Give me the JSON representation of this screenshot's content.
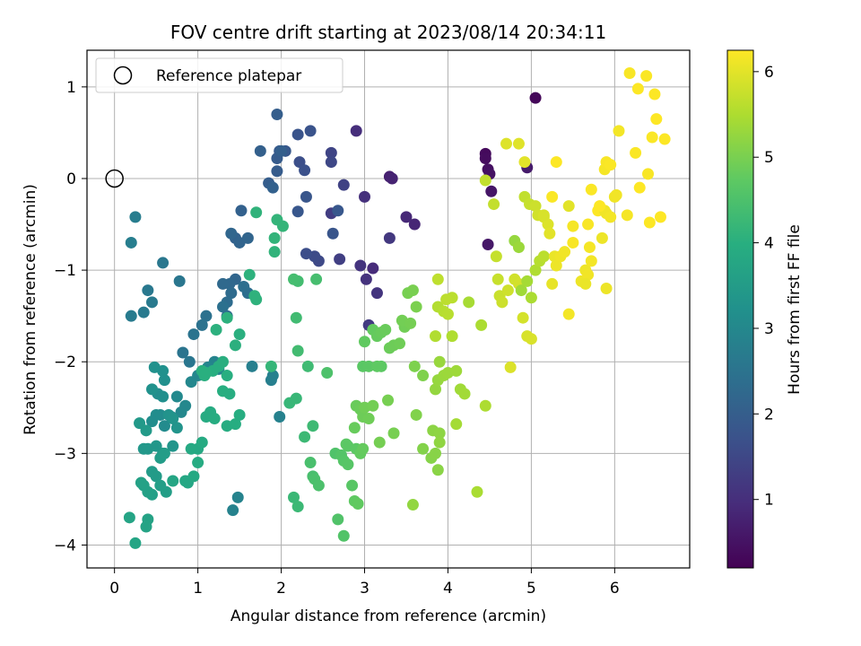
{
  "chart_data": {
    "type": "scatter",
    "title": "FOV centre drift starting at 2023/08/14 20:34:11",
    "xlabel": "Angular distance from reference (arcmin)",
    "ylabel": "Rotation from reference (arcmin)",
    "xlim": [
      -0.33,
      6.9
    ],
    "ylim": [
      -4.25,
      1.4
    ],
    "xticks": [
      0,
      1,
      2,
      3,
      4,
      5,
      6
    ],
    "yticks": [
      -4,
      -3,
      -2,
      -1,
      0,
      1
    ],
    "grid": true,
    "legend": {
      "placement": "top-left",
      "entries": [
        {
          "label": "Reference platepar",
          "marker": "open-circle"
        }
      ]
    },
    "reference_point": {
      "x": 0,
      "y": 0
    },
    "colorbar": {
      "label": "Hours from first FF file",
      "colormap": "viridis",
      "range": [
        0.2,
        6.25
      ],
      "ticks": [
        1,
        2,
        3,
        4,
        5,
        6
      ]
    },
    "points": [
      [
        5.05,
        0.88,
        0.3
      ],
      [
        4.45,
        0.27,
        0.35
      ],
      [
        4.45,
        0.22,
        0.4
      ],
      [
        4.48,
        0.1,
        0.45
      ],
      [
        4.5,
        0.05,
        0.5
      ],
      [
        4.52,
        -0.14,
        0.55
      ],
      [
        4.48,
        -0.72,
        0.6
      ],
      [
        4.95,
        0.12,
        0.65
      ],
      [
        3.3,
        0.02,
        0.75
      ],
      [
        3.33,
        0.0,
        0.8
      ],
      [
        3.6,
        -0.5,
        0.85
      ],
      [
        3.5,
        -0.42,
        0.9
      ],
      [
        3.1,
        -0.98,
        0.95
      ],
      [
        2.9,
        0.52,
        1.0
      ],
      [
        3.0,
        -0.2,
        1.05
      ],
      [
        3.02,
        -1.1,
        1.1
      ],
      [
        2.95,
        -0.95,
        1.12
      ],
      [
        3.15,
        -1.25,
        1.15
      ],
      [
        3.3,
        -0.65,
        1.2
      ],
      [
        3.05,
        -1.6,
        1.25
      ],
      [
        2.6,
        -0.38,
        1.3
      ],
      [
        2.7,
        -0.88,
        1.35
      ],
      [
        2.75,
        -0.07,
        1.4
      ],
      [
        2.6,
        0.28,
        1.45
      ],
      [
        2.6,
        0.18,
        1.5
      ],
      [
        2.45,
        -0.9,
        1.55
      ],
      [
        2.4,
        -0.85,
        1.6
      ],
      [
        2.3,
        -0.82,
        1.65
      ],
      [
        2.22,
        0.18,
        1.68
      ],
      [
        2.28,
        0.09,
        1.72
      ],
      [
        2.35,
        0.52,
        1.75
      ],
      [
        2.2,
        0.48,
        1.78
      ],
      [
        2.3,
        -0.2,
        1.82
      ],
      [
        2.2,
        -0.36,
        1.85
      ],
      [
        2.05,
        0.3,
        1.88
      ],
      [
        1.98,
        0.3,
        1.92
      ],
      [
        1.95,
        0.22,
        1.95
      ],
      [
        1.95,
        0.08,
        1.98
      ],
      [
        1.85,
        -0.05,
        2.0
      ],
      [
        1.95,
        0.7,
        2.03
      ],
      [
        2.0,
        0.3,
        2.05
      ],
      [
        1.75,
        0.3,
        2.07
      ],
      [
        1.9,
        -0.1,
        2.1
      ],
      [
        2.62,
        -0.6,
        1.8
      ],
      [
        2.68,
        -0.35,
        1.85
      ],
      [
        1.52,
        -0.35,
        2.1
      ],
      [
        1.45,
        -0.65,
        2.12
      ],
      [
        1.5,
        -0.7,
        2.15
      ],
      [
        1.6,
        -0.65,
        2.18
      ],
      [
        1.4,
        -0.6,
        2.2
      ],
      [
        1.45,
        -1.1,
        2.22
      ],
      [
        1.38,
        -1.15,
        2.25
      ],
      [
        1.3,
        -1.15,
        2.28
      ],
      [
        1.4,
        -1.25,
        2.32
      ],
      [
        1.35,
        -1.35,
        2.35
      ],
      [
        1.35,
        -1.5,
        2.38
      ],
      [
        1.6,
        -1.25,
        2.4
      ],
      [
        1.55,
        -1.18,
        2.42
      ],
      [
        1.3,
        -1.4,
        2.45
      ],
      [
        1.1,
        -1.5,
        2.47
      ],
      [
        1.05,
        -1.6,
        2.5
      ],
      [
        0.95,
        -1.7,
        2.52
      ],
      [
        0.82,
        -1.9,
        2.55
      ],
      [
        0.9,
        -2.0,
        2.58
      ],
      [
        0.78,
        -1.12,
        2.6
      ],
      [
        0.58,
        -0.92,
        2.62
      ],
      [
        0.4,
        -1.22,
        2.65
      ],
      [
        0.45,
        -1.35,
        2.68
      ],
      [
        0.35,
        -1.46,
        2.7
      ],
      [
        0.2,
        -1.5,
        2.72
      ],
      [
        0.25,
        -0.42,
        2.75
      ],
      [
        0.2,
        -0.7,
        2.78
      ],
      [
        1.65,
        -2.05,
        2.8
      ],
      [
        1.88,
        -2.2,
        2.82
      ],
      [
        1.9,
        -2.15,
        2.84
      ],
      [
        1.98,
        -2.6,
        2.86
      ],
      [
        1.42,
        -3.62,
        2.88
      ],
      [
        1.48,
        -3.48,
        2.9
      ],
      [
        1.2,
        -2.0,
        2.92
      ],
      [
        1.25,
        -2.08,
        2.94
      ],
      [
        1.12,
        -2.06,
        2.96
      ],
      [
        1.0,
        -2.15,
        2.98
      ],
      [
        0.92,
        -2.22,
        3.0
      ],
      [
        0.85,
        -2.48,
        3.02
      ],
      [
        0.8,
        -2.55,
        3.04
      ],
      [
        0.75,
        -2.38,
        3.06
      ],
      [
        0.68,
        -2.6,
        3.08
      ],
      [
        0.6,
        -2.7,
        3.1
      ],
      [
        0.55,
        -2.58,
        3.12
      ],
      [
        0.5,
        -2.58,
        3.14
      ],
      [
        0.45,
        -2.65,
        3.16
      ],
      [
        0.52,
        -2.35,
        3.18
      ],
      [
        0.58,
        -2.38,
        3.2
      ],
      [
        0.6,
        -2.2,
        3.22
      ],
      [
        0.58,
        -2.1,
        3.24
      ],
      [
        0.48,
        -2.06,
        3.26
      ],
      [
        0.45,
        -2.3,
        3.28
      ],
      [
        0.65,
        -2.58,
        3.3
      ],
      [
        0.7,
        -2.62,
        3.32
      ],
      [
        0.75,
        -2.72,
        3.34
      ],
      [
        0.7,
        -2.92,
        3.36
      ],
      [
        0.58,
        -3.0,
        3.38
      ],
      [
        0.5,
        -2.92,
        3.4
      ],
      [
        0.4,
        -2.95,
        3.42
      ],
      [
        0.35,
        -2.95,
        3.44
      ],
      [
        0.3,
        -2.67,
        3.46
      ],
      [
        0.38,
        -2.75,
        3.48
      ],
      [
        0.45,
        -3.2,
        3.5
      ],
      [
        0.5,
        -3.25,
        3.52
      ],
      [
        0.55,
        -3.05,
        3.54
      ],
      [
        0.6,
        -3.0,
        3.56
      ],
      [
        0.62,
        -3.42,
        3.58
      ],
      [
        0.55,
        -3.35,
        3.6
      ],
      [
        0.45,
        -3.45,
        3.62
      ],
      [
        0.4,
        -3.42,
        3.64
      ],
      [
        0.35,
        -3.35,
        3.66
      ],
      [
        0.32,
        -3.32,
        3.68
      ],
      [
        0.4,
        -3.72,
        3.7
      ],
      [
        0.38,
        -3.8,
        3.72
      ],
      [
        0.18,
        -3.7,
        3.74
      ],
      [
        0.25,
        -3.98,
        3.76
      ],
      [
        0.7,
        -3.3,
        3.78
      ],
      [
        0.88,
        -3.32,
        3.8
      ],
      [
        0.85,
        -3.3,
        3.82
      ],
      [
        0.95,
        -3.25,
        3.84
      ],
      [
        1.0,
        -2.95,
        3.86
      ],
      [
        0.92,
        -2.95,
        3.88
      ],
      [
        1.05,
        -2.88,
        3.9
      ],
      [
        1.0,
        -3.1,
        3.92
      ],
      [
        1.1,
        -2.6,
        3.93
      ],
      [
        1.15,
        -2.55,
        3.94
      ],
      [
        1.2,
        -2.62,
        3.95
      ],
      [
        1.35,
        -2.7,
        3.96
      ],
      [
        1.45,
        -2.68,
        3.97
      ],
      [
        1.5,
        -2.58,
        3.98
      ],
      [
        1.38,
        -2.35,
        3.99
      ],
      [
        1.3,
        -2.32,
        4.0
      ],
      [
        1.35,
        -2.15,
        4.0
      ],
      [
        1.18,
        -2.1,
        4.01
      ],
      [
        1.25,
        -2.05,
        4.01
      ],
      [
        1.3,
        -2.0,
        4.02
      ],
      [
        1.08,
        -2.15,
        4.02
      ],
      [
        1.05,
        -2.1,
        4.03
      ],
      [
        1.1,
        -2.12,
        4.03
      ],
      [
        1.5,
        -1.7,
        4.04
      ],
      [
        1.45,
        -1.82,
        4.05
      ],
      [
        1.22,
        -1.65,
        4.06
      ],
      [
        1.35,
        -1.52,
        4.07
      ],
      [
        1.62,
        -1.05,
        4.08
      ],
      [
        1.68,
        -1.28,
        4.09
      ],
      [
        1.7,
        -1.32,
        4.1
      ],
      [
        1.7,
        -0.37,
        4.12
      ],
      [
        1.92,
        -0.8,
        4.14
      ],
      [
        1.92,
        -0.65,
        4.15
      ],
      [
        1.95,
        -0.45,
        4.17
      ],
      [
        2.02,
        -0.52,
        4.18
      ],
      [
        1.88,
        -2.05,
        4.2
      ],
      [
        2.1,
        -2.45,
        4.22
      ],
      [
        2.18,
        -2.4,
        4.24
      ],
      [
        2.15,
        -3.48,
        4.26
      ],
      [
        2.2,
        -3.58,
        4.28
      ],
      [
        2.28,
        -2.82,
        4.3
      ],
      [
        2.38,
        -2.7,
        4.32
      ],
      [
        2.32,
        -2.05,
        4.34
      ],
      [
        2.18,
        -1.52,
        4.36
      ],
      [
        2.2,
        -1.88,
        4.38
      ],
      [
        2.2,
        -1.12,
        4.4
      ],
      [
        2.15,
        -1.1,
        4.42
      ],
      [
        2.42,
        -1.1,
        4.44
      ],
      [
        2.38,
        -3.25,
        4.46
      ],
      [
        2.35,
        -3.1,
        4.48
      ],
      [
        2.4,
        -3.28,
        4.5
      ],
      [
        2.45,
        -3.35,
        4.52
      ],
      [
        2.55,
        -2.12,
        4.54
      ],
      [
        2.65,
        -3.0,
        4.56
      ],
      [
        2.68,
        -3.72,
        4.58
      ],
      [
        2.75,
        -3.9,
        4.6
      ],
      [
        2.72,
        -3.02,
        4.62
      ],
      [
        2.75,
        -3.08,
        4.64
      ],
      [
        2.8,
        -3.12,
        4.66
      ],
      [
        2.85,
        -3.35,
        4.68
      ],
      [
        2.8,
        -2.92,
        4.7
      ],
      [
        2.78,
        -2.9,
        4.72
      ],
      [
        2.9,
        -2.95,
        4.74
      ],
      [
        2.88,
        -3.52,
        4.76
      ],
      [
        2.92,
        -3.55,
        4.78
      ],
      [
        2.95,
        -3.0,
        4.8
      ],
      [
        2.98,
        -2.95,
        4.82
      ],
      [
        2.88,
        -2.72,
        4.84
      ],
      [
        2.9,
        -2.48,
        4.86
      ],
      [
        2.95,
        -2.52,
        4.88
      ],
      [
        2.98,
        -2.6,
        4.9
      ],
      [
        3.05,
        -2.62,
        4.92
      ],
      [
        3.0,
        -2.5,
        4.94
      ],
      [
        3.1,
        -2.48,
        4.96
      ],
      [
        3.18,
        -2.88,
        4.98
      ],
      [
        3.28,
        -2.42,
        5.0
      ],
      [
        3.35,
        -2.78,
        5.0
      ],
      [
        2.98,
        -2.05,
        4.7
      ],
      [
        3.05,
        -2.05,
        4.72
      ],
      [
        3.2,
        -2.05,
        4.74
      ],
      [
        3.15,
        -2.05,
        4.76
      ],
      [
        3.0,
        -1.78,
        4.78
      ],
      [
        3.1,
        -1.65,
        4.8
      ],
      [
        3.15,
        -1.72,
        4.82
      ],
      [
        3.2,
        -1.68,
        4.84
      ],
      [
        3.25,
        -1.65,
        4.86
      ],
      [
        3.3,
        -1.85,
        4.88
      ],
      [
        3.35,
        -1.82,
        4.9
      ],
      [
        3.42,
        -1.8,
        4.92
      ],
      [
        3.48,
        -1.62,
        4.94
      ],
      [
        3.45,
        -1.55,
        4.96
      ],
      [
        3.55,
        -1.58,
        4.98
      ],
      [
        3.52,
        -1.25,
        5.0
      ],
      [
        3.58,
        -1.22,
        5.02
      ],
      [
        3.62,
        -1.4,
        5.04
      ],
      [
        3.6,
        -2.05,
        5.06
      ],
      [
        3.7,
        -2.15,
        5.08
      ],
      [
        3.62,
        -2.58,
        5.1
      ],
      [
        3.7,
        -2.95,
        5.12
      ],
      [
        3.8,
        -3.05,
        5.14
      ],
      [
        3.85,
        -3.0,
        5.16
      ],
      [
        3.88,
        -3.18,
        5.18
      ],
      [
        3.82,
        -2.75,
        5.2
      ],
      [
        3.9,
        -2.78,
        5.22
      ],
      [
        3.9,
        -2.88,
        5.24
      ],
      [
        3.58,
        -3.56,
        5.26
      ],
      [
        3.85,
        -2.3,
        5.28
      ],
      [
        3.88,
        -2.2,
        5.3
      ],
      [
        3.9,
        -2.0,
        5.32
      ],
      [
        3.95,
        -2.15,
        5.34
      ],
      [
        4.0,
        -2.12,
        5.36
      ],
      [
        4.1,
        -2.1,
        5.38
      ],
      [
        4.15,
        -2.3,
        5.4
      ],
      [
        4.2,
        -2.35,
        5.42
      ],
      [
        4.1,
        -2.68,
        5.44
      ],
      [
        4.25,
        -1.35,
        5.46
      ],
      [
        4.35,
        -3.42,
        5.48
      ],
      [
        4.4,
        -1.6,
        5.5
      ],
      [
        4.45,
        -2.48,
        5.52
      ],
      [
        4.05,
        -1.72,
        5.54
      ],
      [
        3.85,
        -1.72,
        5.56
      ],
      [
        3.88,
        -1.4,
        5.58
      ],
      [
        3.95,
        -1.45,
        5.6
      ],
      [
        4.0,
        -1.48,
        5.62
      ],
      [
        4.05,
        -1.3,
        5.64
      ],
      [
        3.98,
        -1.32,
        5.66
      ],
      [
        3.88,
        -1.1,
        5.68
      ],
      [
        4.45,
        -0.02,
        5.7
      ],
      [
        4.55,
        -0.28,
        5.72
      ],
      [
        4.58,
        -0.85,
        5.74
      ],
      [
        4.6,
        -1.1,
        5.76
      ],
      [
        4.62,
        -1.28,
        5.78
      ],
      [
        4.65,
        -1.35,
        5.8
      ],
      [
        4.72,
        -1.22,
        5.82
      ],
      [
        4.8,
        -1.1,
        5.84
      ],
      [
        4.85,
        -1.15,
        5.86
      ],
      [
        4.9,
        -1.52,
        5.88
      ],
      [
        4.95,
        -1.72,
        5.9
      ],
      [
        5.0,
        -1.75,
        5.92
      ],
      [
        4.75,
        -2.06,
        5.94
      ],
      [
        4.7,
        0.38,
        5.96
      ],
      [
        4.85,
        0.38,
        5.98
      ],
      [
        4.92,
        0.18,
        6.0
      ],
      [
        4.8,
        -0.68,
        5.3
      ],
      [
        4.85,
        -0.75,
        5.35
      ],
      [
        4.88,
        -1.22,
        5.4
      ],
      [
        4.95,
        -1.12,
        5.45
      ],
      [
        5.0,
        -1.3,
        5.5
      ],
      [
        5.05,
        -1.0,
        5.55
      ],
      [
        5.1,
        -0.9,
        5.6
      ],
      [
        5.15,
        -0.85,
        5.65
      ],
      [
        4.92,
        -0.2,
        5.7
      ],
      [
        4.98,
        -0.28,
        5.75
      ],
      [
        5.05,
        -0.3,
        5.8
      ],
      [
        5.08,
        -0.4,
        5.85
      ],
      [
        5.15,
        -0.42,
        5.9
      ],
      [
        5.2,
        -0.5,
        5.95
      ],
      [
        5.22,
        -0.6,
        6.0
      ],
      [
        5.25,
        -1.15,
        6.05
      ],
      [
        5.28,
        -0.85,
        6.08
      ],
      [
        5.3,
        -0.95,
        6.1
      ],
      [
        5.35,
        -0.85,
        6.12
      ],
      [
        5.4,
        -0.8,
        6.14
      ],
      [
        5.45,
        -1.48,
        6.16
      ],
      [
        5.5,
        -0.52,
        6.18
      ],
      [
        5.5,
        -0.7,
        6.2
      ],
      [
        5.25,
        -0.2,
        6.22
      ],
      [
        5.3,
        0.18,
        6.24
      ],
      [
        5.6,
        -1.12,
        6.1
      ],
      [
        5.65,
        -1.0,
        6.12
      ],
      [
        5.68,
        -1.05,
        6.14
      ],
      [
        5.72,
        -0.9,
        6.16
      ],
      [
        5.7,
        -0.75,
        6.18
      ],
      [
        5.68,
        -0.5,
        6.2
      ],
      [
        5.72,
        -0.12,
        6.22
      ],
      [
        5.8,
        -0.35,
        6.24
      ],
      [
        5.85,
        -0.65,
        6.1
      ],
      [
        5.88,
        -0.35,
        6.12
      ],
      [
        5.9,
        -0.38,
        6.14
      ],
      [
        5.95,
        -0.42,
        6.16
      ],
      [
        5.88,
        0.1,
        6.18
      ],
      [
        5.9,
        0.18,
        6.2
      ],
      [
        5.95,
        0.15,
        6.22
      ],
      [
        5.82,
        -0.3,
        6.24
      ],
      [
        5.9,
        -1.2,
        6.1
      ],
      [
        6.0,
        -0.2,
        6.12
      ],
      [
        6.02,
        -0.18,
        6.14
      ],
      [
        6.05,
        0.52,
        6.16
      ],
      [
        6.15,
        -0.4,
        6.18
      ],
      [
        6.18,
        1.15,
        6.2
      ],
      [
        6.25,
        0.28,
        6.22
      ],
      [
        6.28,
        0.98,
        6.24
      ],
      [
        6.3,
        -0.1,
        6.25
      ],
      [
        6.38,
        1.12,
        6.22
      ],
      [
        6.4,
        0.05,
        6.2
      ],
      [
        6.42,
        -0.48,
        6.24
      ],
      [
        6.45,
        0.45,
        6.22
      ],
      [
        6.48,
        0.92,
        6.24
      ],
      [
        6.5,
        0.65,
        6.25
      ],
      [
        6.55,
        -0.42,
        6.25
      ],
      [
        6.6,
        0.43,
        6.24
      ],
      [
        5.65,
        -1.15,
        6.08
      ],
      [
        5.45,
        -0.3,
        6.0
      ],
      [
        5.15,
        -0.4,
        5.9
      ]
    ]
  }
}
